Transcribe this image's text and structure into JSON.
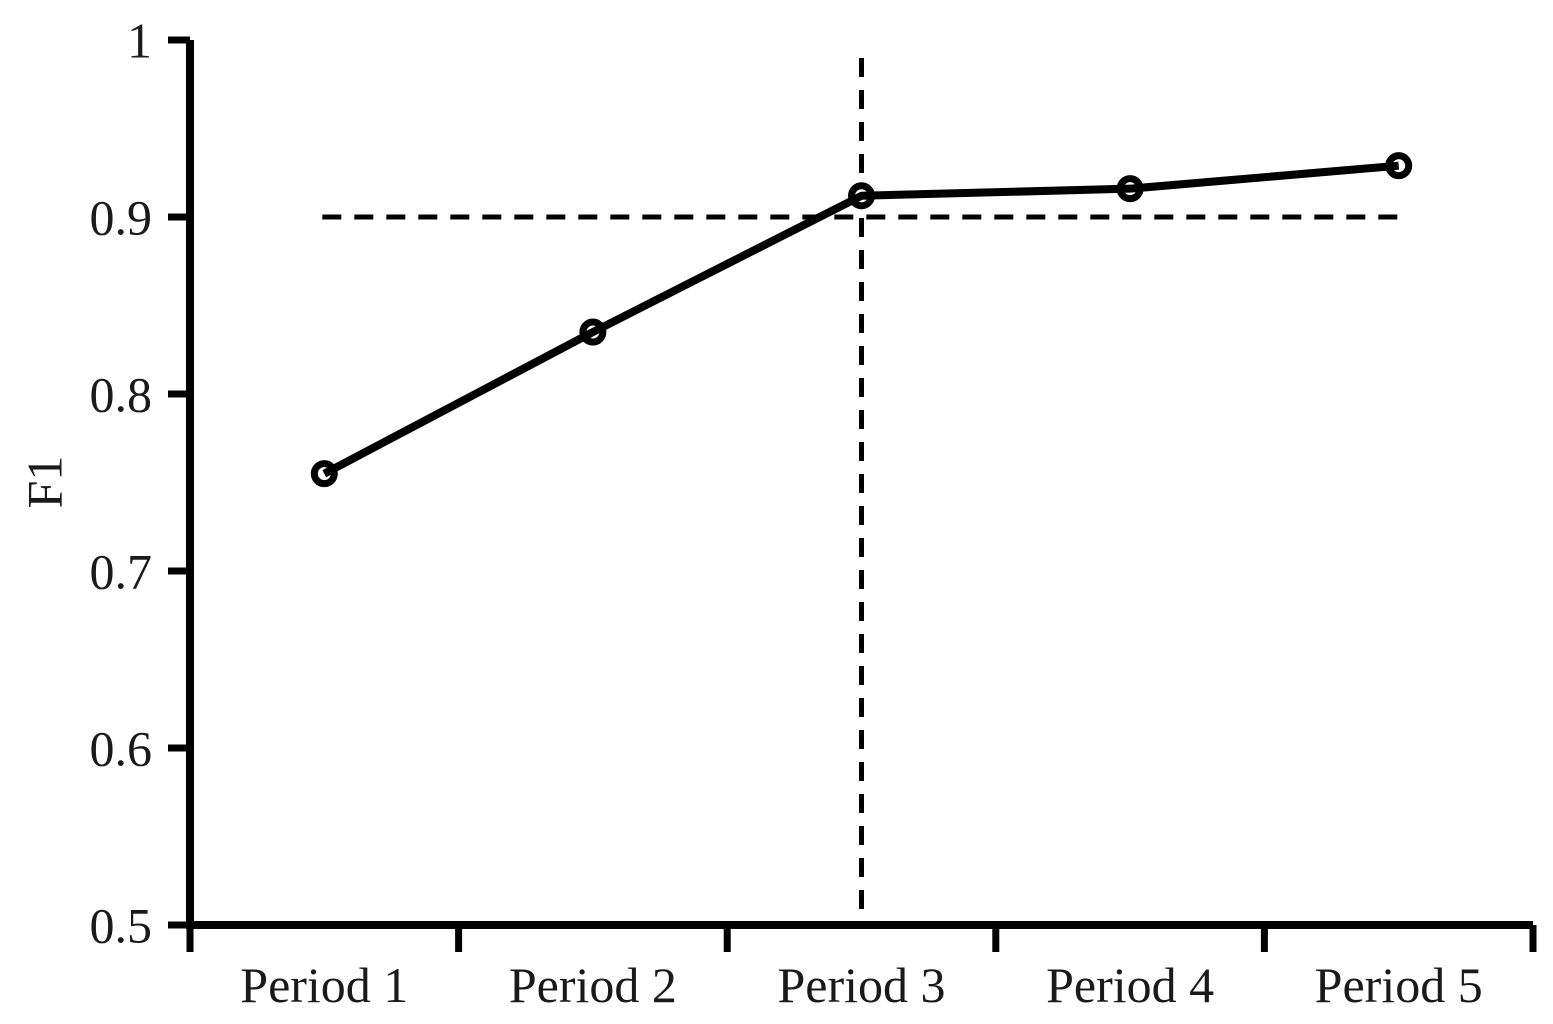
{
  "figure": {
    "background_color": "#ffffff",
    "line_color": "#000000",
    "text_color": "#1a1a1a"
  },
  "chart_data": {
    "type": "line",
    "title": "",
    "xlabel": "",
    "ylabel": "F1",
    "categories": [
      "Period 1",
      "Period 2",
      "Period 3",
      "Period 4",
      "Period 5"
    ],
    "series": [
      {
        "name": "F1",
        "marker": "open-circle",
        "color": "#000000",
        "values": [
          0.755,
          0.835,
          0.912,
          0.916,
          0.929
        ]
      }
    ],
    "ylim": [
      0.5,
      1.0
    ],
    "yticks": [
      1,
      0.9,
      0.8,
      0.7,
      0.6,
      0.5
    ],
    "ytick_labels": [
      "1",
      "0.9",
      "0.8",
      "0.7",
      "0.6",
      "0.5"
    ],
    "grid": false,
    "legend": "none",
    "reference_lines": [
      {
        "orientation": "horizontal",
        "value": 0.9,
        "style": "dashed",
        "from_category": "Period 1",
        "to_category": "Period 5"
      },
      {
        "orientation": "vertical",
        "category": "Period 3",
        "style": "dashed"
      }
    ]
  }
}
